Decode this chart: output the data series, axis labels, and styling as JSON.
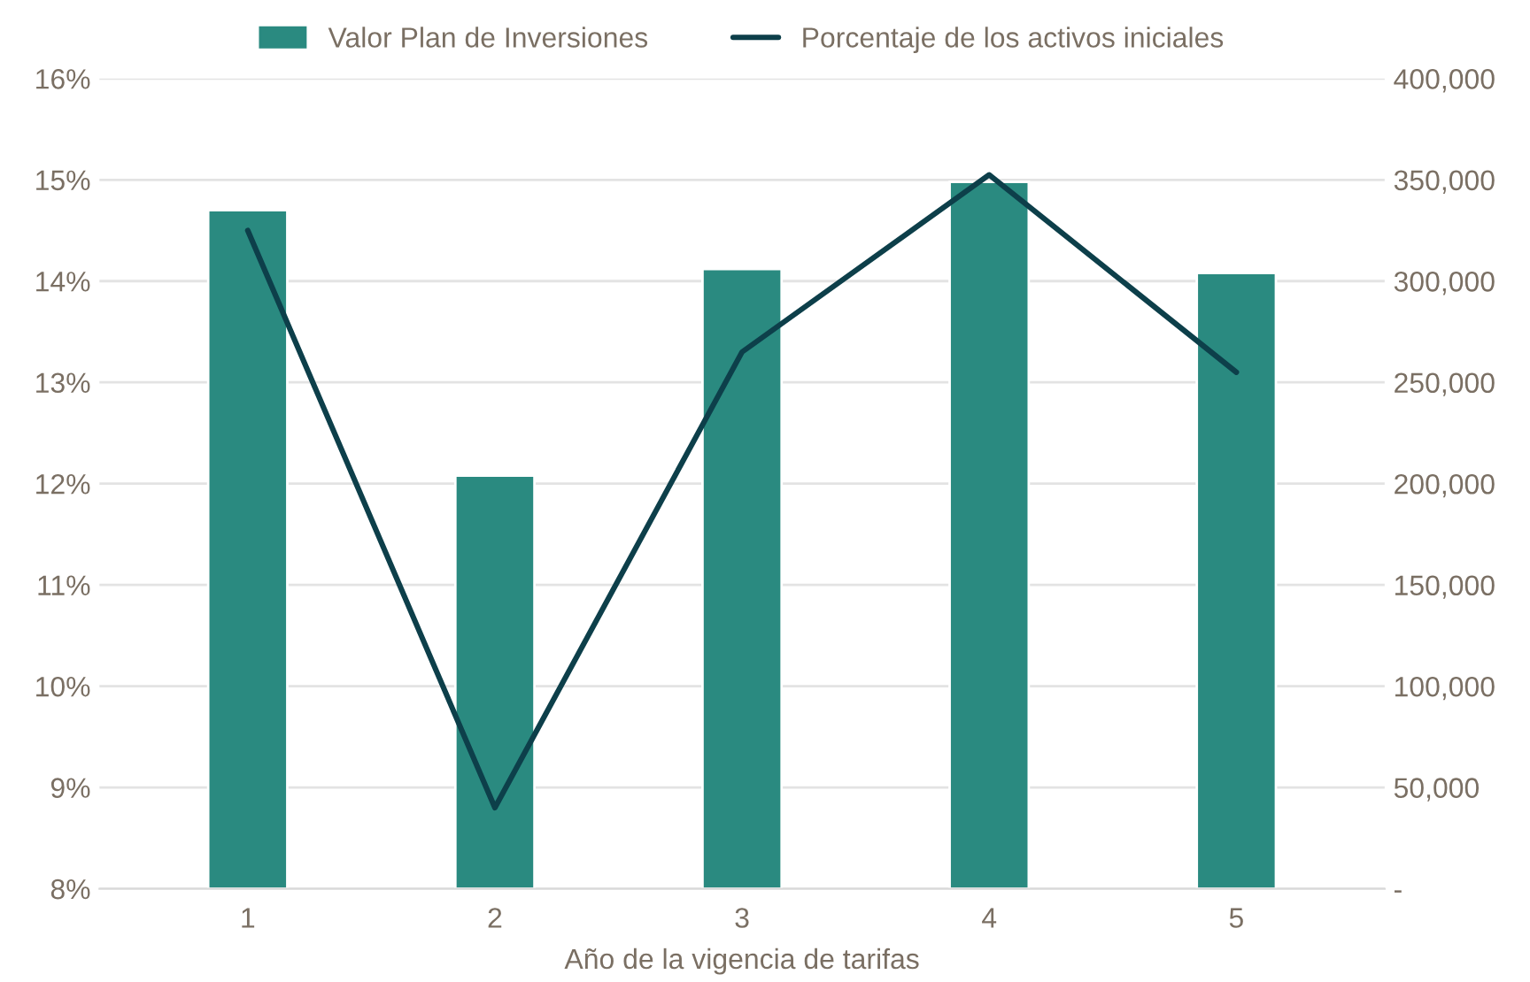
{
  "chart_data": {
    "type": "bar",
    "xlabel": "Año de la vigencia de tarifas",
    "categories": [
      "1",
      "2",
      "3",
      "4",
      "5"
    ],
    "series": [
      {
        "name": "Valor Plan de Inversiones",
        "axis": "y2",
        "color": "#2a8a80",
        "values": [
          335000,
          204000,
          306000,
          349000,
          304000
        ]
      },
      {
        "name": "Porcentaje de los activos iniciales",
        "type": "line",
        "axis": "y",
        "color": "#0d3f4a",
        "values": [
          14.5,
          8.8,
          13.3,
          15.05,
          13.1
        ]
      }
    ],
    "ylim": [
      8,
      16
    ],
    "yticks": [
      {
        "value": 8,
        "label": "8%"
      },
      {
        "value": 9,
        "label": "9%"
      },
      {
        "value": 10,
        "label": "10%"
      },
      {
        "value": 11,
        "label": "11%"
      },
      {
        "value": 12,
        "label": "12%"
      },
      {
        "value": 13,
        "label": "13%"
      },
      {
        "value": 14,
        "label": "14%"
      },
      {
        "value": 15,
        "label": "15%"
      },
      {
        "value": 16,
        "label": "16%"
      }
    ],
    "y2lim": [
      0,
      400000
    ],
    "y2ticks": [
      {
        "value": 0,
        "label": "-"
      },
      {
        "value": 50000,
        "label": "50,000"
      },
      {
        "value": 100000,
        "label": "100,000"
      },
      {
        "value": 150000,
        "label": "150,000"
      },
      {
        "value": 200000,
        "label": "200,000"
      },
      {
        "value": 250000,
        "label": "250,000"
      },
      {
        "value": 300000,
        "label": "300,000"
      },
      {
        "value": 350000,
        "label": "350,000"
      },
      {
        "value": 400000,
        "label": "400,000"
      }
    ],
    "grid": "y",
    "legend": "top",
    "marker": "none",
    "line_style": "solid"
  }
}
